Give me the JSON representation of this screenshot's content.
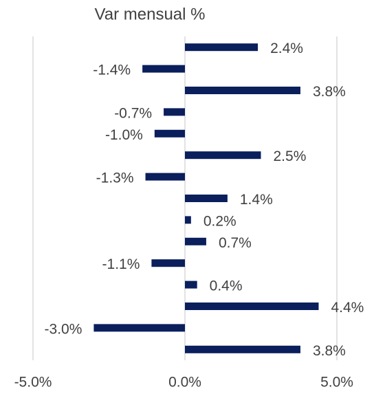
{
  "chart_data": {
    "type": "bar",
    "orientation": "horizontal",
    "title": "Var mensual %",
    "categories": [
      null,
      null,
      null,
      null,
      null,
      null,
      null,
      null,
      null,
      null,
      null,
      null,
      null,
      null,
      null
    ],
    "values": [
      2.4,
      -1.4,
      3.8,
      -0.7,
      -1.0,
      2.5,
      -1.3,
      1.4,
      0.2,
      0.7,
      -1.1,
      0.4,
      4.4,
      -3.0,
      3.8
    ],
    "value_labels": [
      "2.4%",
      "-1.4%",
      "3.8%",
      "-0.7%",
      "-1.0%",
      "2.5%",
      "-1.3%",
      "1.4%",
      "0.2%",
      "0.7%",
      "-1.1%",
      "0.4%",
      "4.4%",
      "-3.0%",
      "3.8%"
    ],
    "color": "#0a1f5c",
    "xlim": [
      -5,
      5
    ],
    "xticks": [
      {
        "value": -5,
        "label": "-5.0%"
      },
      {
        "value": 0,
        "label": "0.0%"
      },
      {
        "value": 5,
        "label": "5.0%"
      }
    ],
    "grid": true
  }
}
